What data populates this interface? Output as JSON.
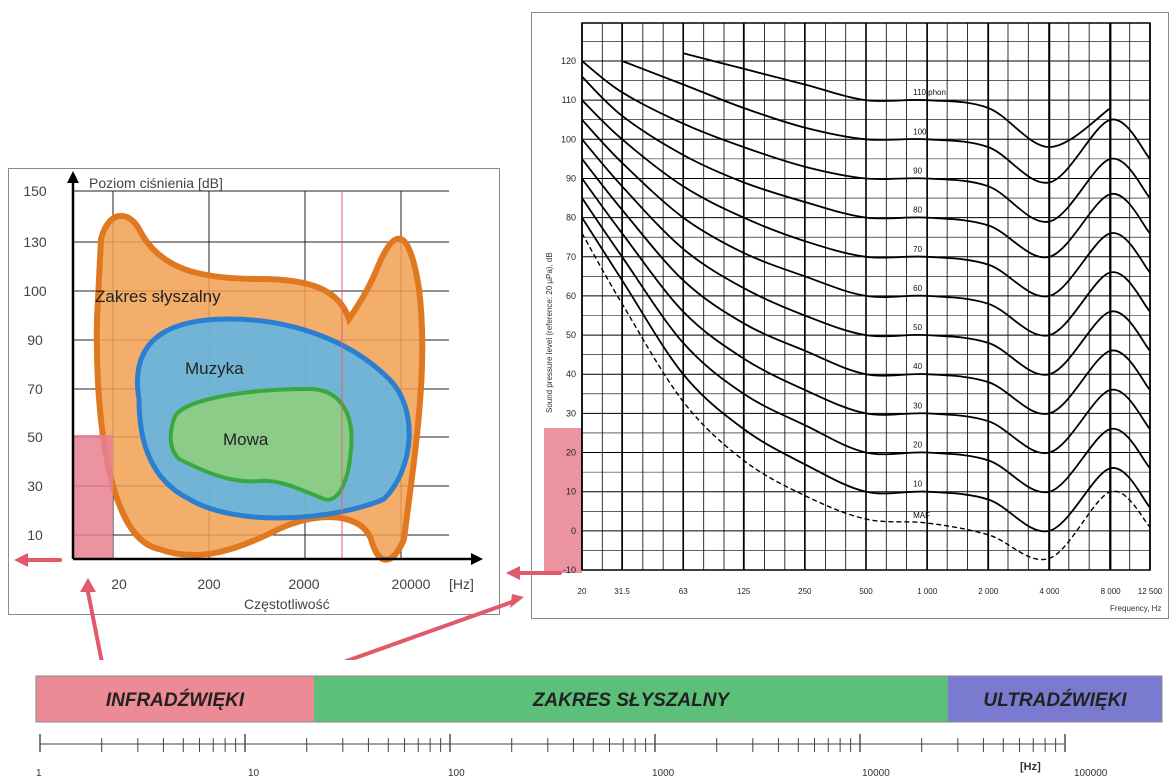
{
  "left_chart": {
    "ylabel": "Poziom ciśnienia [dB]",
    "xlabel": "Częstotliwość",
    "x_unit": "[Hz]",
    "y_ticks": [
      "150",
      "130",
      "100",
      "90",
      "70",
      "50",
      "30",
      "10"
    ],
    "x_ticks": [
      "20",
      "200",
      "2000",
      "20000"
    ],
    "regions": [
      {
        "label": "Zakres słyszalny",
        "color": "#f0a050",
        "outline": "#e07820"
      },
      {
        "label": "Muzyka",
        "color": "#5bb5e8",
        "outline": "#2a7fd0"
      },
      {
        "label": "Mowa",
        "color": "#8fd07a",
        "outline": "#3aa840"
      }
    ],
    "infrasound_zone_color": "#e88090"
  },
  "right_chart": {
    "ylabel": "Sound pressure level (reference: 20 µPa), dB",
    "xlabel": "Frequency, Hz",
    "y_ticks": [
      "120",
      "110",
      "100",
      "90",
      "80",
      "70",
      "60",
      "50",
      "40",
      "30",
      "20",
      "10",
      "0",
      "-10"
    ],
    "x_ticks": [
      "20",
      "31.5",
      "63",
      "125",
      "250",
      "500",
      "1 000",
      "2 000",
      "4 000",
      "8 000",
      "12 500"
    ],
    "curve_labels": [
      "110 phon",
      "100",
      "90",
      "80",
      "70",
      "60",
      "50",
      "40",
      "30",
      "20",
      "10",
      "MAF"
    ]
  },
  "chart_data": {
    "type": "line",
    "title": "",
    "xlabel": "Frequency, Hz",
    "ylabel": "Sound pressure level (reference: 20 µPa), dB",
    "x": [
      20,
      31.5,
      63,
      125,
      250,
      500,
      1000,
      2000,
      4000,
      8000,
      12500
    ],
    "xscale": "log",
    "ylim": [
      -10,
      125
    ],
    "grid": true,
    "series": [
      {
        "name": "110 phon",
        "values": [
          null,
          null,
          122,
          118,
          114,
          110,
          110,
          108,
          98,
          108,
          null
        ]
      },
      {
        "name": "100",
        "values": [
          null,
          120,
          114,
          108,
          103,
          100,
          100,
          98,
          89,
          105,
          95
        ]
      },
      {
        "name": "90",
        "values": [
          120,
          112,
          104,
          98,
          93,
          90,
          90,
          88,
          79,
          95,
          85
        ]
      },
      {
        "name": "80",
        "values": [
          116,
          106,
          96,
          89,
          84,
          80,
          80,
          78,
          70,
          86,
          76
        ]
      },
      {
        "name": "70",
        "values": [
          110,
          100,
          88,
          80,
          74,
          70,
          70,
          68,
          60,
          76,
          66
        ]
      },
      {
        "name": "60",
        "values": [
          105,
          94,
          80,
          71,
          65,
          60,
          60,
          58,
          50,
          66,
          56
        ]
      },
      {
        "name": "50",
        "values": [
          100,
          88,
          72,
          62,
          55,
          50,
          50,
          48,
          40,
          56,
          46
        ]
      },
      {
        "name": "40",
        "values": [
          95,
          82,
          64,
          53,
          46,
          40,
          40,
          38,
          30,
          46,
          36
        ]
      },
      {
        "name": "30",
        "values": [
          90,
          76,
          56,
          44,
          36,
          30,
          30,
          28,
          20,
          36,
          26
        ]
      },
      {
        "name": "20",
        "values": [
          85,
          70,
          48,
          35,
          27,
          20,
          20,
          18,
          10,
          26,
          16
        ]
      },
      {
        "name": "10",
        "values": [
          80,
          64,
          40,
          26,
          17,
          10,
          10,
          8,
          0,
          16,
          6
        ]
      },
      {
        "name": "MAF",
        "values": [
          76,
          58,
          33,
          18,
          9,
          3,
          2,
          -1,
          -7,
          10,
          1
        ]
      }
    ]
  },
  "bands": [
    {
      "label": "INFRADŹWIĘKI",
      "color": "#ec8a96"
    },
    {
      "label": "ZAKRES SŁYSZALNY",
      "color": "#5cc07a"
    },
    {
      "label": "ULTRADŹWIĘKI",
      "color": "#7a7ad0"
    }
  ],
  "scale_labels": [
    "1",
    "10",
    "100",
    "1000",
    "10000",
    "[Hz]",
    "100000"
  ]
}
